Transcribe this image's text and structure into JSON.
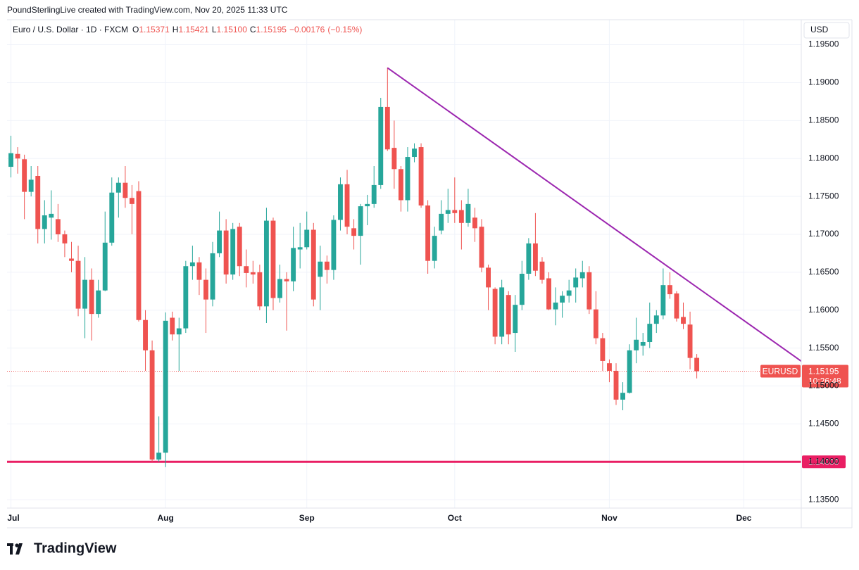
{
  "chart_data": {
    "type": "candlestick",
    "attribution": "PoundSterlingLive created with TradingView.com, Nov 20, 2025 11:33 UTC",
    "title": "Euro / U.S. Dollar · 1D · FXCM",
    "legend": [
      {
        "key": "O",
        "value": 1.15371,
        "label": "1.15371"
      },
      {
        "key": "H",
        "value": 1.15421,
        "label": "1.15421"
      },
      {
        "key": "L",
        "value": 1.151,
        "label": "1.15100"
      },
      {
        "key": "C",
        "value": 1.15195,
        "label": "1.15195"
      }
    ],
    "change": {
      "value": -0.00176,
      "label": "−0.00176"
    },
    "change_pct": {
      "value": -0.15,
      "label": "(−0.15%)"
    },
    "currency": "USD",
    "logo": "TradingView",
    "up_color": "#26a69a",
    "down_color": "#ef5350",
    "xlim": [
      -0.58,
      117.54
    ],
    "xticks": [
      {
        "value": 0,
        "label": "Jul"
      },
      {
        "value": 23,
        "label": "Aug"
      },
      {
        "value": 44,
        "label": "Sep"
      },
      {
        "value": 66,
        "label": "Oct"
      },
      {
        "value": 89,
        "label": "Nov"
      },
      {
        "value": 109,
        "label": "Dec"
      }
    ],
    "ylim": [
      1.1339,
      1.1983
    ],
    "yticks": [
      {
        "value": 1.135,
        "label": "1.13500"
      },
      {
        "value": 1.14,
        "label": "1.14000"
      },
      {
        "value": 1.145,
        "label": "1.14500"
      },
      {
        "value": 1.15,
        "label": "1.15000"
      },
      {
        "value": 1.155,
        "label": "1.15500"
      },
      {
        "value": 1.16,
        "label": "1.16000"
      },
      {
        "value": 1.165,
        "label": "1.16500"
      },
      {
        "value": 1.17,
        "label": "1.17000"
      },
      {
        "value": 1.175,
        "label": "1.17500"
      },
      {
        "value": 1.18,
        "label": "1.18000"
      },
      {
        "value": 1.185,
        "label": "1.18500"
      },
      {
        "value": 1.19,
        "label": "1.19000"
      },
      {
        "value": 1.195,
        "label": "1.19500"
      }
    ],
    "grid": true,
    "open": [
      1.1789,
      1.1806,
      1.1799,
      1.1756,
      1.1777,
      1.1707,
      1.1722,
      1.172,
      1.17,
      1.1668,
      1.1665,
      1.1602,
      1.164,
      1.1595,
      1.1626,
      1.1689,
      1.1755,
      1.1768,
      1.1748,
      1.1757,
      1.1587,
      1.1547,
      1.1403,
      1.1412,
      1.159,
      1.1568,
      1.1576,
      1.1658,
      1.1663,
      1.164,
      1.1614,
      1.1675,
      1.1705,
      1.1647,
      1.171,
      1.1658,
      1.165,
      1.165,
      1.1605,
      1.1718,
      1.1616,
      1.1641,
      1.1638,
      1.168,
      1.1683,
      1.1706,
      1.1644,
      1.1664,
      1.1653,
      1.1719,
      1.1766,
      1.1708,
      1.1698,
      1.1737,
      1.174,
      1.1765,
      1.1868,
      1.1814,
      1.1786,
      1.1745,
      1.1802,
      1.1815,
      1.1738,
      1.1665,
      1.1705,
      1.1727,
      1.1732,
      1.1732,
      1.1715,
      1.1722,
      1.171,
      1.1656,
      1.1628,
      1.1565,
      1.162,
      1.157,
      1.1607,
      1.1648,
      1.1688,
      1.1664,
      1.1642,
      1.1601,
      1.161,
      1.1619,
      1.163,
      1.1642,
      1.165,
      1.1601,
      1.1563,
      1.153,
      1.152,
      1.1482,
      1.1491,
      1.1547,
      1.1553,
      1.1558,
      1.1582,
      1.1593,
      1.1633,
      1.1622,
      1.1591,
      1.1581,
      1.15371
    ],
    "high": [
      1.183,
      1.1815,
      1.1805,
      1.179,
      1.179,
      1.1745,
      1.1758,
      1.174,
      1.1705,
      1.169,
      1.1685,
      1.167,
      1.1655,
      1.164,
      1.173,
      1.1775,
      1.1775,
      1.179,
      1.1765,
      1.177,
      1.16,
      1.156,
      1.146,
      1.1597,
      1.1598,
      1.159,
      1.1665,
      1.1685,
      1.167,
      1.1655,
      1.169,
      1.173,
      1.172,
      1.1715,
      1.1715,
      1.168,
      1.1665,
      1.166,
      1.1735,
      1.1722,
      1.166,
      1.165,
      1.171,
      1.1715,
      1.173,
      1.1715,
      1.1685,
      1.1672,
      1.1725,
      1.1775,
      1.1785,
      1.172,
      1.174,
      1.1752,
      1.179,
      1.188,
      1.192,
      1.185,
      1.179,
      1.1815,
      1.182,
      1.182,
      1.1745,
      1.171,
      1.1745,
      1.176,
      1.1775,
      1.1745,
      1.176,
      1.1735,
      1.172,
      1.166,
      1.163,
      1.164,
      1.1625,
      1.162,
      1.1665,
      1.1695,
      1.1728,
      1.167,
      1.165,
      1.163,
      1.1625,
      1.164,
      1.1655,
      1.1665,
      1.1658,
      1.1625,
      1.157,
      1.1535,
      1.153,
      1.1505,
      1.1555,
      1.159,
      1.157,
      1.161,
      1.16,
      1.1655,
      1.165,
      1.1625,
      1.161,
      1.1598,
      1.15421
    ],
    "low": [
      1.1775,
      1.178,
      1.172,
      1.175,
      1.1688,
      1.1688,
      1.1693,
      1.169,
      1.167,
      1.165,
      1.1592,
      1.1563,
      1.156,
      1.159,
      1.1625,
      1.1685,
      1.1722,
      1.1735,
      1.17,
      1.1585,
      1.152,
      1.14,
      1.14,
      1.1393,
      1.156,
      1.152,
      1.157,
      1.164,
      1.162,
      1.157,
      1.1605,
      1.167,
      1.1635,
      1.164,
      1.1645,
      1.163,
      1.1635,
      1.16,
      1.1583,
      1.16,
      1.161,
      1.1573,
      1.1625,
      1.1655,
      1.168,
      1.1605,
      1.16,
      1.1635,
      1.164,
      1.1705,
      1.17,
      1.168,
      1.166,
      1.1712,
      1.1735,
      1.176,
      1.181,
      1.176,
      1.173,
      1.173,
      1.1795,
      1.1735,
      1.1648,
      1.1655,
      1.17,
      1.1715,
      1.1715,
      1.168,
      1.171,
      1.169,
      1.165,
      1.16,
      1.1555,
      1.1555,
      1.1555,
      1.1545,
      1.16,
      1.164,
      1.1645,
      1.1635,
      1.16,
      1.158,
      1.159,
      1.161,
      1.161,
      1.163,
      1.1595,
      1.1555,
      1.152,
      1.1505,
      1.1475,
      1.1468,
      1.149,
      1.153,
      1.154,
      1.155,
      1.157,
      1.1588,
      1.1615,
      1.1585,
      1.1575,
      1.1522,
      1.151
    ],
    "close": [
      1.1807,
      1.18,
      1.1756,
      1.1772,
      1.1707,
      1.1725,
      1.1727,
      1.17,
      1.1688,
      1.1665,
      1.1602,
      1.164,
      1.1595,
      1.1626,
      1.1689,
      1.1755,
      1.1768,
      1.1748,
      1.174,
      1.1587,
      1.1547,
      1.1403,
      1.1412,
      1.1586,
      1.1568,
      1.1576,
      1.1658,
      1.1663,
      1.164,
      1.1614,
      1.1675,
      1.1705,
      1.1647,
      1.1707,
      1.1658,
      1.1649,
      1.1647,
      1.1605,
      1.1718,
      1.1616,
      1.1641,
      1.1638,
      1.1682,
      1.1683,
      1.1706,
      1.1614,
      1.1664,
      1.1653,
      1.1719,
      1.1766,
      1.171,
      1.1698,
      1.1737,
      1.174,
      1.1765,
      1.1868,
      1.1812,
      1.1786,
      1.1745,
      1.1802,
      1.1813,
      1.1738,
      1.1665,
      1.1698,
      1.1727,
      1.1732,
      1.1728,
      1.1715,
      1.174,
      1.1708,
      1.1656,
      1.163,
      1.1565,
      1.163,
      1.1568,
      1.1607,
      1.1648,
      1.1688,
      1.1652,
      1.164,
      1.1601,
      1.161,
      1.1619,
      1.1626,
      1.1643,
      1.165,
      1.1601,
      1.1563,
      1.1533,
      1.152,
      1.1482,
      1.1491,
      1.1547,
      1.1561,
      1.1558,
      1.1582,
      1.1593,
      1.1633,
      1.1621,
      1.1589,
      1.1582,
      1.1537,
      1.15195
    ],
    "last_price": {
      "symbol": "EURUSD",
      "value": 1.15195,
      "label": "1.15195",
      "countdown": "10:26:48",
      "color": "#ef5350"
    },
    "hline": {
      "value": 1.14,
      "label": "1.14000",
      "color": "#e91e63"
    },
    "trendline": {
      "x": [
        56,
        117.54
      ],
      "y": [
        1.19195,
        1.15327
      ],
      "color": "#9c27b0"
    }
  }
}
